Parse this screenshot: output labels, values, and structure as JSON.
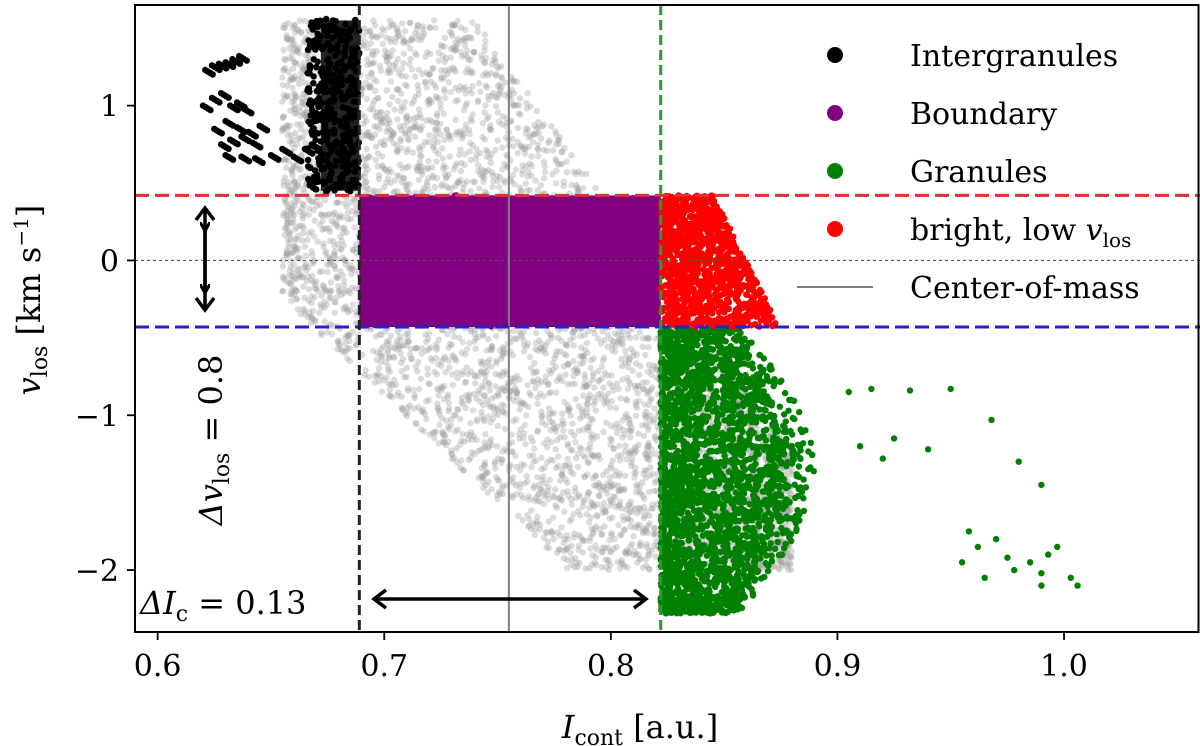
{
  "chart_data": {
    "type": "scatter",
    "xlabel": "I_cont [a.u.]",
    "xlabel_main": "I",
    "xlabel_sub": "cont",
    "xlabel_unit": " [a.u.]",
    "ylabel": "v_los [km s^-1]",
    "ylabel_main": "v",
    "ylabel_sub": "los",
    "ylabel_unit": " [km s",
    "ylabel_exp": "−1",
    "ylabel_close": "]",
    "xlim": [
      0.59,
      1.06
    ],
    "ylim": [
      -2.4,
      1.65
    ],
    "xticks": [
      0.6,
      0.7,
      0.8,
      0.9,
      1.0
    ],
    "xtick_labels": [
      "0.6",
      "0.7",
      "0.8",
      "0.9",
      "1.0"
    ],
    "yticks": [
      -2,
      -1,
      0,
      1
    ],
    "ytick_labels": [
      "−2",
      "−1",
      "0",
      "1"
    ],
    "colors": {
      "all": "#9a9a9a",
      "intergranules": "#000000",
      "boundary": "#800080",
      "granules": "#008000",
      "bright": "#ff0000",
      "center_line": "#808080",
      "upper_threshold": "#e03030",
      "lower_threshold": "#2020dd",
      "left_threshold": "#222222",
      "right_threshold": "#2a9a2a",
      "zero_line": "#555555"
    },
    "thresholds": {
      "v_upper": 0.42,
      "v_lower": -0.43,
      "i_left": 0.689,
      "i_right": 0.822,
      "center_of_mass": 0.755
    },
    "series": [
      {
        "name": "Intergranules",
        "color": "#000000",
        "region": {
          "i_range": [
            0.67,
            0.689
          ],
          "v_range": [
            0.42,
            1.57
          ]
        },
        "extra_points": [
          [
            0.621,
            1.23
          ],
          [
            0.624,
            1.26
          ],
          [
            0.627,
            1.27
          ],
          [
            0.63,
            1.28
          ],
          [
            0.633,
            1.3
          ],
          [
            0.636,
            1.32
          ],
          [
            0.62,
            1.0
          ],
          [
            0.624,
            1.05
          ],
          [
            0.628,
            1.08
          ],
          [
            0.632,
            1.0
          ],
          [
            0.635,
            1.02
          ],
          [
            0.638,
            0.98
          ],
          [
            0.625,
            0.85
          ],
          [
            0.63,
            0.9
          ],
          [
            0.635,
            0.86
          ],
          [
            0.64,
            0.83
          ],
          [
            0.645,
            0.87
          ],
          [
            0.628,
            0.75
          ],
          [
            0.632,
            0.78
          ],
          [
            0.637,
            0.8
          ],
          [
            0.642,
            0.76
          ],
          [
            0.63,
            0.68
          ],
          [
            0.637,
            0.67
          ],
          [
            0.643,
            0.66
          ],
          [
            0.65,
            0.68
          ],
          [
            0.655,
            0.72
          ],
          [
            0.66,
            0.67
          ],
          [
            0.665,
            0.72
          ],
          [
            0.668,
            0.75
          ]
        ]
      },
      {
        "name": "Boundary",
        "color": "#800080",
        "region": {
          "i_range": [
            0.689,
            0.822
          ],
          "v_range": [
            -0.43,
            0.42
          ]
        }
      },
      {
        "name": "Granules",
        "color": "#008000",
        "region": {
          "i_range": [
            0.822,
            0.9
          ],
          "v_range": [
            -2.3,
            -0.43
          ]
        },
        "extra_points": [
          [
            0.905,
            -0.85
          ],
          [
            0.915,
            -0.83
          ],
          [
            0.932,
            -0.84
          ],
          [
            0.95,
            -0.83
          ],
          [
            0.968,
            -1.03
          ],
          [
            0.98,
            -1.3
          ],
          [
            0.99,
            -1.45
          ],
          [
            0.958,
            -1.75
          ],
          [
            0.962,
            -1.85
          ],
          [
            0.97,
            -1.8
          ],
          [
            0.975,
            -1.92
          ],
          [
            0.985,
            -1.95
          ],
          [
            0.993,
            -1.9
          ],
          [
            0.997,
            -1.85
          ],
          [
            1.003,
            -2.05
          ],
          [
            1.006,
            -2.1
          ],
          [
            0.955,
            -1.95
          ],
          [
            0.965,
            -2.05
          ],
          [
            0.978,
            -2.0
          ],
          [
            0.99,
            -2.1
          ],
          [
            0.91,
            -1.2
          ],
          [
            0.92,
            -1.28
          ],
          [
            0.925,
            -1.15
          ],
          [
            0.94,
            -1.22
          ],
          [
            0.99,
            -2.02
          ]
        ]
      },
      {
        "name": "bright, low v_los",
        "color": "#ff0000",
        "region": {
          "i_range": [
            0.822,
            0.87
          ],
          "v_range": [
            -0.43,
            0.42
          ]
        }
      }
    ],
    "legend": {
      "placement": "top-right",
      "entries": [
        {
          "label": "Intergranules",
          "marker": "dot",
          "color": "#000000"
        },
        {
          "label": "Boundary",
          "marker": "dot",
          "color": "#800080"
        },
        {
          "label": "Granules",
          "marker": "dot",
          "color": "#008000"
        },
        {
          "label_main": "bright, low ",
          "label_sym": "v",
          "label_sub": "los",
          "marker": "dot",
          "color": "#ff0000"
        },
        {
          "label": "Center-of-mass",
          "marker": "line",
          "color": "#808080"
        }
      ]
    },
    "annotations": {
      "delta_v": {
        "text_main": "Δv",
        "text_sub": "los",
        "text_rest": " = 0.8"
      },
      "delta_i": {
        "text_main": "ΔI",
        "text_sub": "c",
        "text_rest": " = 0.13"
      }
    }
  }
}
